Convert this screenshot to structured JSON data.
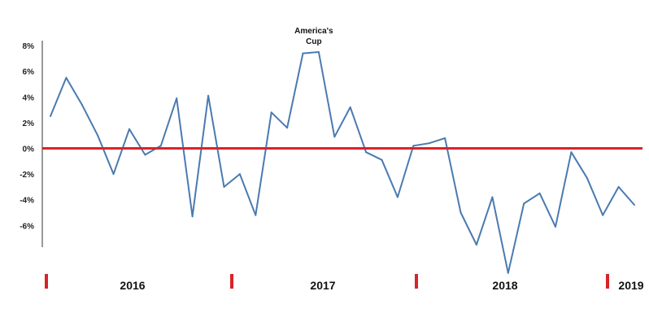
{
  "chart_data": {
    "type": "line",
    "title": "",
    "xlabel": "",
    "ylabel": "",
    "ylim": [
      -10,
      8
    ],
    "y_ticks": [
      8,
      6,
      4,
      2,
      0,
      -2,
      -4,
      -6
    ],
    "y_tick_labels": [
      "8%",
      "6%",
      "4%",
      "2%",
      "0%",
      "-2%",
      "-4%",
      "-6%"
    ],
    "grid": false,
    "years": [
      "2016",
      "2017",
      "2018",
      "2019"
    ],
    "series": [
      {
        "values": [
          2.5,
          5.5,
          3.4,
          1.0,
          -2.0,
          1.5,
          -0.5,
          0.2,
          3.9,
          -5.3,
          4.1,
          -3.0,
          -2.0,
          -5.2,
          2.8,
          1.6,
          7.4,
          7.5,
          0.9,
          3.2,
          -0.3,
          -0.9,
          -3.8,
          0.2,
          0.4,
          0.8,
          -5.0,
          -7.5,
          -3.8,
          -9.7,
          -4.3,
          -3.5,
          -6.1,
          -0.3,
          -2.3,
          -5.2,
          -3.0,
          -4.4
        ]
      }
    ],
    "reference_line": 0,
    "annotation": {
      "line1": "America's",
      "line2": "Cup",
      "index": 17
    },
    "colors": {
      "series": "#4a7ab0",
      "reference": "#d8232a",
      "markers": "#d8232a",
      "axis": "#333333"
    }
  }
}
